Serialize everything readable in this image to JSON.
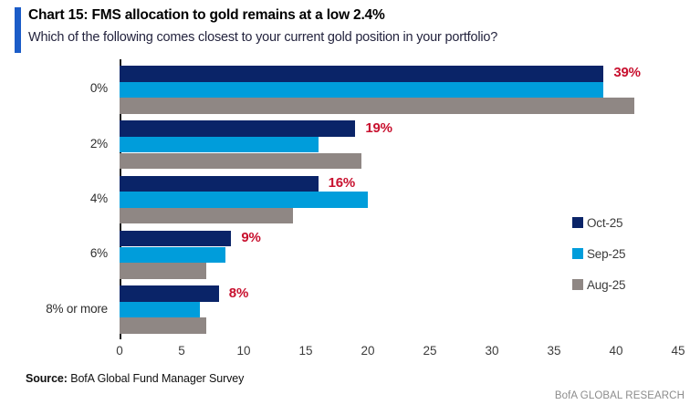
{
  "header": {
    "title": "Chart 15: FMS allocation to gold remains at a low 2.4%",
    "subtitle": "Which of the following comes closest to your current gold position in your portfolio?",
    "accent_color": "#1b5cc8"
  },
  "chart_data": {
    "type": "bar",
    "orientation": "horizontal",
    "title": "Chart 15: FMS allocation to gold remains at a low 2.4%",
    "subtitle": "Which of the following comes closest to your current gold position in your portfolio?",
    "categories": [
      "0%",
      "2%",
      "4%",
      "6%",
      "8% or more"
    ],
    "series": [
      {
        "name": "Oct-25",
        "color": "#0a2468",
        "values": [
          39,
          19,
          16,
          9,
          8
        ]
      },
      {
        "name": "Sep-25",
        "color": "#009ddb",
        "values": [
          39,
          16,
          20,
          8.5,
          6.5
        ]
      },
      {
        "name": "Aug-25",
        "color": "#8f8784",
        "values": [
          41.5,
          19.5,
          14,
          7,
          7
        ]
      }
    ],
    "value_labels": {
      "for_series": "Oct-25",
      "labels": [
        "39%",
        "19%",
        "16%",
        "9%",
        "8%"
      ],
      "color": "#c8102e"
    },
    "x_ticks": [
      0,
      5,
      10,
      15,
      20,
      25,
      30,
      35,
      40,
      45
    ],
    "xlim": [
      0,
      45
    ],
    "grid": false,
    "legend_position": "right"
  },
  "footer": {
    "source_label": "Source:",
    "source_text": " BofA Global Fund Manager Survey",
    "brand": "BofA GLOBAL RESEARCH"
  }
}
